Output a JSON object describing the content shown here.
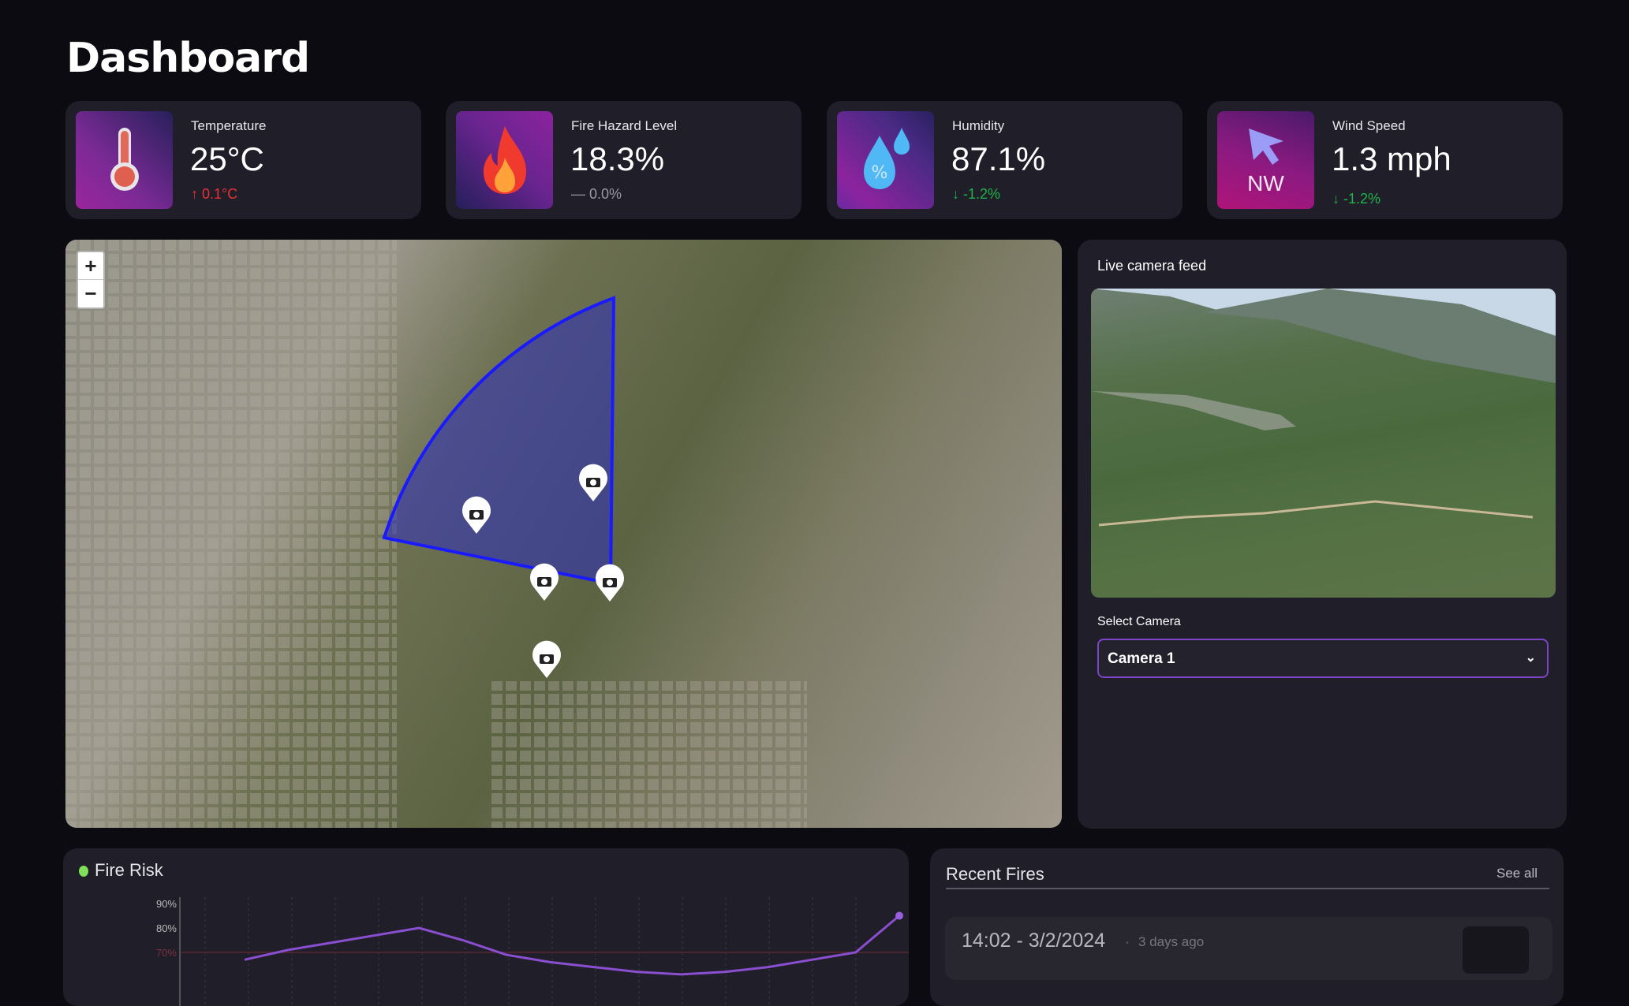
{
  "page": {
    "title": "Dashboard"
  },
  "stats": [
    {
      "label": "Temperature",
      "value": "25°C",
      "delta": "0.1°C",
      "trend": "up",
      "color": "#e8323a",
      "icon": "thermometer-icon"
    },
    {
      "label": "Fire Hazard Level",
      "value": "18.3%",
      "delta": "0.0%",
      "trend": "flat",
      "color": "#9a98a4",
      "icon": "fire-icon"
    },
    {
      "label": "Humidity",
      "value": "87.1%",
      "delta": "-1.2%",
      "trend": "down",
      "color": "#1fb34a",
      "icon": "water-drop-icon"
    },
    {
      "label": "Wind Speed",
      "value": "1.3 mph",
      "delta": "-1.2%",
      "trend": "down",
      "color": "#1fb34a",
      "icon": "wind-arrow-icon",
      "direction": "NW"
    }
  ],
  "map": {
    "zoom_in": "+",
    "zoom_out": "−",
    "sector_color": "#1a1aff",
    "camera_count": 5
  },
  "camera": {
    "title": "Live camera feed",
    "select_label": "Select Camera",
    "selected": "Camera 1"
  },
  "fire_risk": {
    "title": "Fire Risk",
    "status_color": "#7ee05a",
    "chart_data": {
      "type": "line",
      "y_ticks": [
        "90%",
        "80%",
        "70%"
      ],
      "threshold": 70,
      "values": [
        67,
        71,
        74,
        77,
        80,
        75,
        69,
        66,
        64,
        62,
        61,
        62,
        64,
        67,
        70,
        85
      ],
      "ylim": [
        60,
        95
      ],
      "grid": "vertical-dashed",
      "line_color": "#8a4fd0"
    }
  },
  "recent_fires": {
    "title": "Recent Fires",
    "see_all": "See all",
    "items": [
      {
        "time": "14:02 - 3/2/2024",
        "ago": "3 days ago"
      }
    ]
  }
}
